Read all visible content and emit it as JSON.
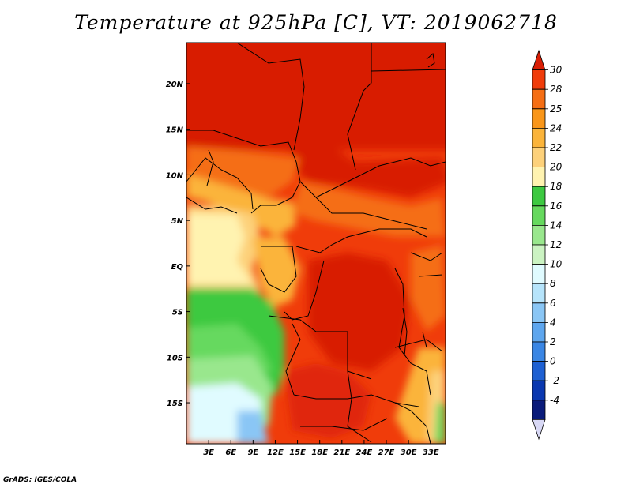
{
  "title": "Temperature at 925hPa [C], VT: 2019062718",
  "credit": "GrADS: IGES/COLA",
  "chart_data": {
    "type": "heatmap",
    "title": "Temperature at 925hPa [C], VT: 2019062718",
    "variable": "Temperature",
    "level": "925hPa",
    "units": "C",
    "valid_time": "2019062718",
    "x_ticks": [
      3,
      6,
      9,
      12,
      15,
      18,
      21,
      24,
      27,
      30,
      33
    ],
    "x_tick_labels": [
      "3E",
      "6E",
      "9E",
      "12E",
      "15E",
      "18E",
      "21E",
      "24E",
      "27E",
      "30E",
      "33E"
    ],
    "y_ticks": [
      20,
      15,
      10,
      5,
      0,
      -5,
      -10,
      -15
    ],
    "y_tick_labels": [
      "20N",
      "15N",
      "10N",
      "5N",
      "EQ",
      "5S",
      "10S",
      "15S"
    ],
    "xlim": [
      0,
      35
    ],
    "ylim": [
      -19.5,
      24.5
    ],
    "colorbar": {
      "labels": [
        "30",
        "28",
        "25",
        "24",
        "22",
        "20",
        "18",
        "16",
        "14",
        "12",
        "10",
        "8",
        "6",
        "4",
        "2",
        "0",
        "-2",
        "-4"
      ],
      "colors": [
        "#d81e05",
        "#f03c0a",
        "#f56e14",
        "#f99619",
        "#fbb43a",
        "#fdd17a",
        "#fff3b0",
        "#3dc941",
        "#66d95e",
        "#99e78d",
        "#cbf3c2",
        "#e0fbff",
        "#b6e4fb",
        "#8ac6f5",
        "#5ea6ee",
        "#3a86e4",
        "#1e60d2",
        "#0a38b0",
        "#0a1b7a",
        "#d8d8f5"
      ]
    }
  }
}
